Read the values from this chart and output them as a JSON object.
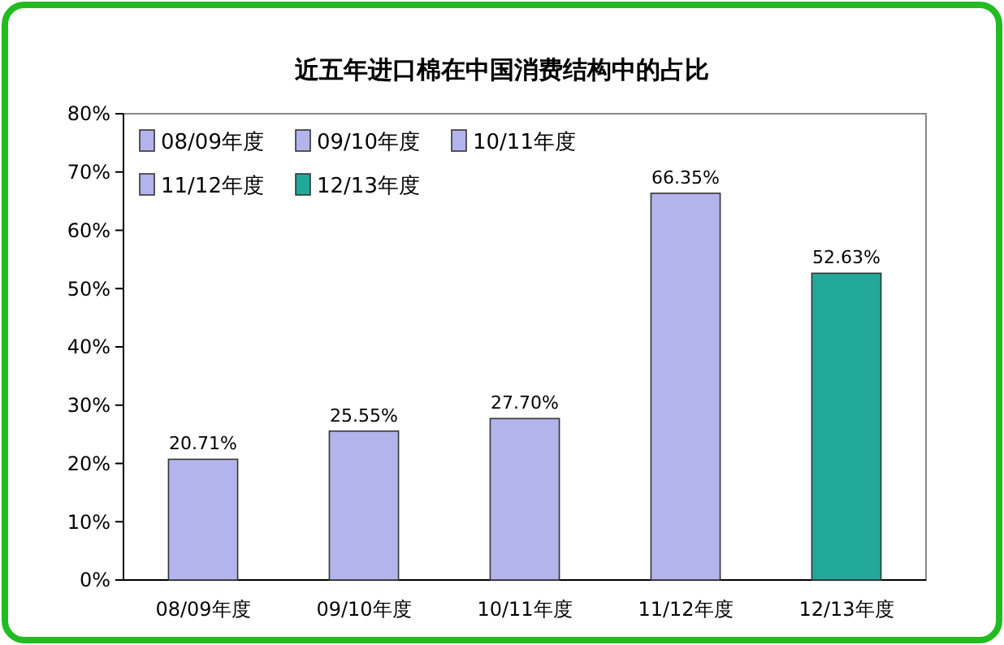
{
  "chart_data": {
    "type": "bar",
    "title": "近五年进口棉在中国消费结构中的占比",
    "categories": [
      "08/09年度",
      "09/10年度",
      "10/11年度",
      "11/12年度",
      "12/13年度"
    ],
    "series": [
      {
        "name": "08/09年度",
        "color": "#b4b4ec",
        "values": [
          20.71,
          null,
          null,
          null,
          null
        ],
        "value_labels": [
          "20.71%",
          null,
          null,
          null,
          null
        ]
      },
      {
        "name": "09/10年度",
        "color": "#b4b4ec",
        "values": [
          null,
          25.55,
          null,
          null,
          null
        ],
        "value_labels": [
          null,
          "25.55%",
          null,
          null,
          null
        ]
      },
      {
        "name": "10/11年度",
        "color": "#b4b4ec",
        "values": [
          null,
          null,
          27.7,
          null,
          null
        ],
        "value_labels": [
          null,
          null,
          "27.70%",
          null,
          null
        ]
      },
      {
        "name": "11/12年度",
        "color": "#b4b4ec",
        "values": [
          null,
          null,
          null,
          66.35,
          null
        ],
        "value_labels": [
          null,
          null,
          null,
          "66.35%",
          null
        ]
      },
      {
        "name": "12/13年度",
        "color": "#22a898",
        "values": [
          null,
          null,
          null,
          null,
          52.63
        ],
        "value_labels": [
          null,
          null,
          null,
          null,
          "52.63%"
        ]
      }
    ],
    "ylim": [
      0,
      80
    ],
    "yticks": [
      {
        "value": 0,
        "label": "0%"
      },
      {
        "value": 10,
        "label": "10%"
      },
      {
        "value": 20,
        "label": "20%"
      },
      {
        "value": 30,
        "label": "30%"
      },
      {
        "value": 40,
        "label": "40%"
      },
      {
        "value": 50,
        "label": "50%"
      },
      {
        "value": 60,
        "label": "60%"
      },
      {
        "value": 70,
        "label": "70%"
      },
      {
        "value": 80,
        "label": "80%"
      }
    ],
    "grid": false,
    "legend": "top left"
  }
}
